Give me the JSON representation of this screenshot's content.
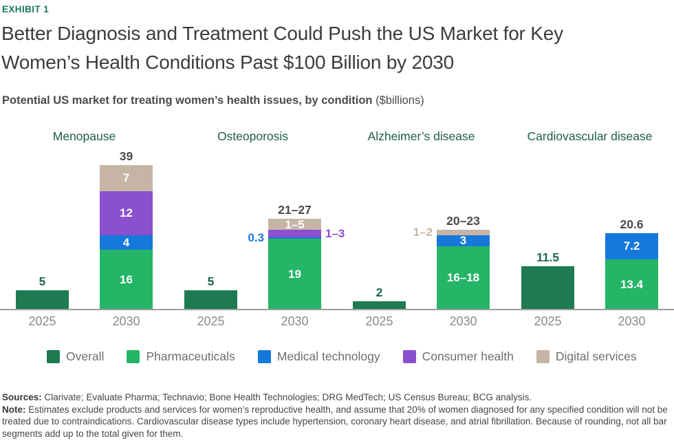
{
  "exhibit_label": "EXHIBIT 1",
  "title_lines": [
    "Better Diagnosis and Treatment Could Push the US Market for Key",
    "Women’s Health Conditions Past $100 Billion by 2030"
  ],
  "subtitle": {
    "main": "Potential US market for treating women’s health issues, by condition",
    "unit": "($billions)"
  },
  "accent_colors": {
    "exhibit_green": "#177B57",
    "condition_label_green": "#1E5C49",
    "value_label_green": "#1C6B4A",
    "total_label_gray": "#4A4A4A",
    "axis_gray": "#9D9D9D"
  },
  "chart_data": {
    "type": "bar",
    "stacked": true,
    "unit": "$billions",
    "x_years": [
      "2025",
      "2030"
    ],
    "series_legend": [
      {
        "key": "overall",
        "label": "Overall",
        "color": "#1E7A52"
      },
      {
        "key": "pharma",
        "label": "Pharmaceuticals",
        "color": "#24B566"
      },
      {
        "key": "medtech",
        "label": "Medical technology",
        "color": "#1778DC"
      },
      {
        "key": "consumer",
        "label": "Consumer health",
        "color": "#8B50CE"
      },
      {
        "key": "digital",
        "label": "Digital services",
        "color": "#C6B5A5"
      }
    ],
    "groups": [
      {
        "condition": "Menopause",
        "bars": [
          {
            "year": "2025",
            "total_label": "5",
            "total_style": "green",
            "segments": [
              {
                "series": "overall",
                "value": 5
              }
            ]
          },
          {
            "year": "2030",
            "total_label": "39",
            "total_style": "gray",
            "segments": [
              {
                "series": "pharma",
                "value": 16,
                "label": "16",
                "label_pos": "inside"
              },
              {
                "series": "medtech",
                "value": 4,
                "label": "4",
                "label_pos": "inside"
              },
              {
                "series": "consumer",
                "value": 12,
                "label": "12",
                "label_pos": "inside"
              },
              {
                "series": "digital",
                "value": 7,
                "label": "7",
                "label_pos": "inside"
              }
            ]
          }
        ]
      },
      {
        "condition": "Osteoporosis",
        "bars": [
          {
            "year": "2025",
            "total_label": "5",
            "total_style": "green",
            "segments": [
              {
                "series": "overall",
                "value": 5
              }
            ]
          },
          {
            "year": "2030",
            "total_label": "21–27",
            "total_style": "gray",
            "segments": [
              {
                "series": "pharma",
                "value": 19,
                "label": "19",
                "label_pos": "inside"
              },
              {
                "series": "medtech",
                "value": 0.3,
                "label": "0.3",
                "label_pos": "left"
              },
              {
                "series": "consumer",
                "value": 2,
                "label": "1–3",
                "label_pos": "right"
              },
              {
                "series": "digital",
                "value": 3,
                "label": "1–5",
                "label_pos": "inside"
              }
            ]
          }
        ]
      },
      {
        "condition": "Alzheimer’s disease",
        "bars": [
          {
            "year": "2025",
            "total_label": "2",
            "total_style": "green",
            "segments": [
              {
                "series": "overall",
                "value": 2
              }
            ]
          },
          {
            "year": "2030",
            "total_label": "20–23",
            "total_style": "gray",
            "segments": [
              {
                "series": "pharma",
                "value": 17,
                "label": "16–18",
                "label_pos": "inside"
              },
              {
                "series": "medtech",
                "value": 3,
                "label": "3",
                "label_pos": "inside"
              },
              {
                "series": "digital",
                "value": 1.5,
                "label": "1–2",
                "label_pos": "left"
              }
            ]
          }
        ]
      },
      {
        "condition": "Cardiovascular disease",
        "bars": [
          {
            "year": "2025",
            "total_label": "11.5",
            "total_style": "green",
            "segments": [
              {
                "series": "overall",
                "value": 11.5
              }
            ]
          },
          {
            "year": "2030",
            "total_label": "20.6",
            "total_style": "gray",
            "segments": [
              {
                "series": "pharma",
                "value": 13.4,
                "label": "13.4",
                "label_pos": "inside"
              },
              {
                "series": "medtech",
                "value": 7.2,
                "label": "7.2",
                "label_pos": "inside"
              }
            ]
          }
        ]
      }
    ]
  },
  "footnotes": {
    "sources_label": "Sources:",
    "sources_text": "Clarivate; Evaluate Pharma; Technavio; Bone Health Technologies; DRG MedTech; US Census Bureau; BCG analysis.",
    "note_label": "Note:",
    "note_text": "Estimates exclude products and services for women’s reproductive health, and assume that 20% of women diagnosed for any specified condition will not be treated due to contraindications. Cardiovascular disease types include hypertension, coronary heart disease, and atrial fibrillation. Because of rounding, not all bar segments add up to the total given for them."
  }
}
